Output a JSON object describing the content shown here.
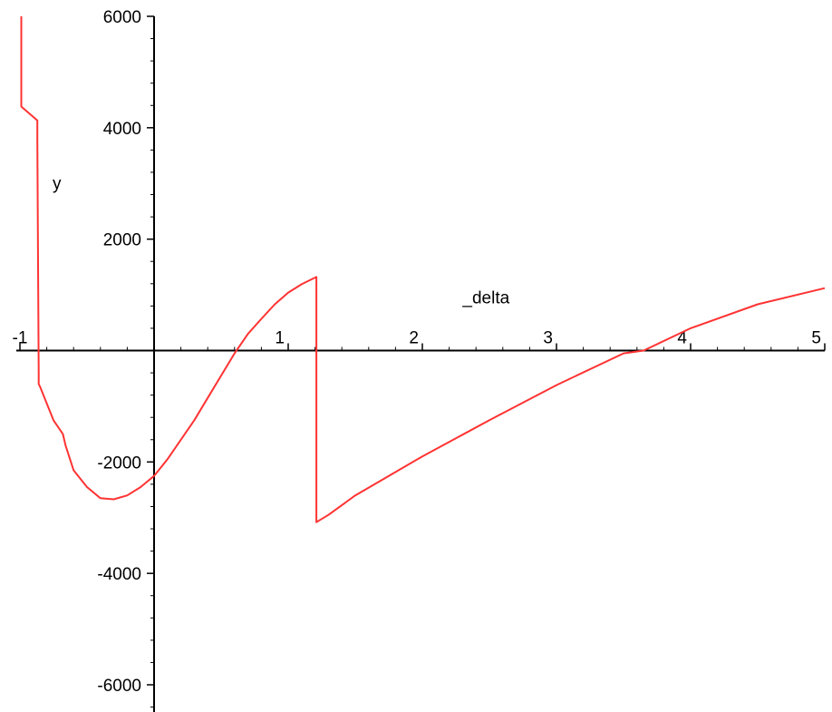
{
  "chart_data": {
    "type": "line",
    "title": "",
    "xlabel": "_delta",
    "ylabel": "y",
    "xlim": [
      -1,
      5
    ],
    "ylim": [
      -6200,
      6000
    ],
    "grid": false,
    "legend": "none",
    "line_color": "#ff3333",
    "x_ticks": [
      {
        "value": -1,
        "label": "-1"
      },
      {
        "value": 1,
        "label": "1"
      },
      {
        "value": 2,
        "label": "2"
      },
      {
        "value": 3,
        "label": "3"
      },
      {
        "value": 4,
        "label": "4"
      },
      {
        "value": 5,
        "label": "5"
      }
    ],
    "y_ticks": [
      {
        "value": 6000,
        "label": "6000"
      },
      {
        "value": 4000,
        "label": "4000"
      },
      {
        "value": 2000,
        "label": "2000"
      },
      {
        "value": -2000,
        "label": "-2000"
      },
      {
        "value": -4000,
        "label": "-4000"
      },
      {
        "value": -6000,
        "label": "-6000"
      }
    ],
    "series": [
      {
        "x": [
          -0.99,
          -0.99,
          -0.87,
          -0.87,
          -0.86,
          -0.86,
          -0.85,
          -0.75,
          -0.68,
          -0.66,
          -0.6,
          -0.5,
          -0.4,
          -0.3,
          -0.2,
          -0.1,
          0,
          0.1,
          0.2,
          0.3,
          0.4,
          0.5,
          0.6,
          0.7,
          0.8,
          0.9,
          1.0,
          1.1,
          1.21,
          1.21,
          1.3,
          1.5,
          1.75,
          2.0,
          2.5,
          3.0,
          3.5,
          3.65,
          4.0,
          4.5,
          5.0
        ],
        "y": [
          6000,
          4380,
          4130,
          3800,
          -400,
          -600,
          -650,
          -1250,
          -1500,
          -1700,
          -2150,
          -2450,
          -2650,
          -2670,
          -2600,
          -2450,
          -2250,
          -1950,
          -1600,
          -1250,
          -850,
          -450,
          -50,
          300,
          570,
          830,
          1040,
          1190,
          1320,
          -3080,
          -2950,
          -2600,
          -2250,
          -1900,
          -1250,
          -620,
          -50,
          0,
          400,
          830,
          1120
        ]
      }
    ]
  }
}
